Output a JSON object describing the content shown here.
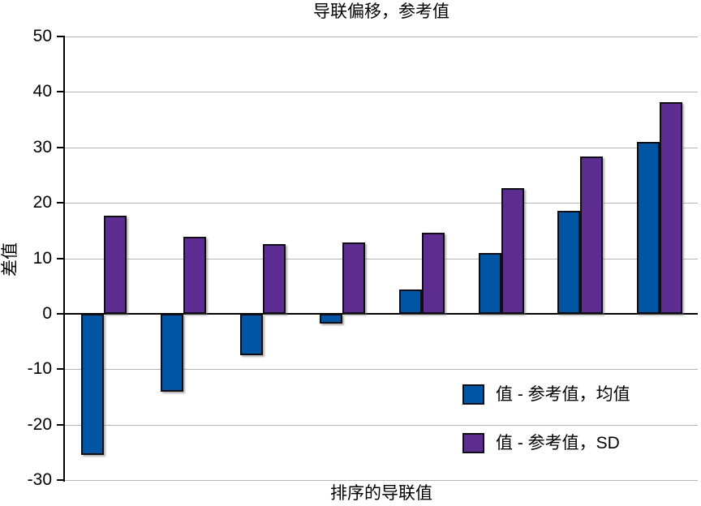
{
  "chart_data": {
    "type": "bar",
    "title": "导联偏移，参考值",
    "xlabel": "排序的导联值",
    "ylabel": "差值",
    "ylim": [
      -30,
      50
    ],
    "yticks": [
      50,
      40,
      30,
      20,
      10,
      0,
      -10,
      -20,
      -30
    ],
    "grid": true,
    "n_groups": 8,
    "categories": [
      "",
      "",
      "",
      "",
      "",
      "",
      "",
      ""
    ],
    "legend_position": "inside-bottom-right",
    "series": [
      {
        "name": "值 - 参考值，均值",
        "color": "#0055a5",
        "values": [
          -25.5,
          -14.0,
          -7.5,
          -1.8,
          4.3,
          11.0,
          18.5,
          31.0
        ]
      },
      {
        "name": "值 - 参考值，SD",
        "color": "#5e2d91",
        "values": [
          17.7,
          13.9,
          12.5,
          12.8,
          14.6,
          22.6,
          28.4,
          38.2
        ]
      }
    ]
  },
  "colors": {
    "background": "#ffffff",
    "gridline": "#b5b5b5",
    "zero_line": "#000000",
    "axis": "#000000",
    "text": "#000000",
    "bar_edge": "#0e0e14",
    "series_mean": "#0055a5",
    "series_sd": "#5e2d91"
  }
}
